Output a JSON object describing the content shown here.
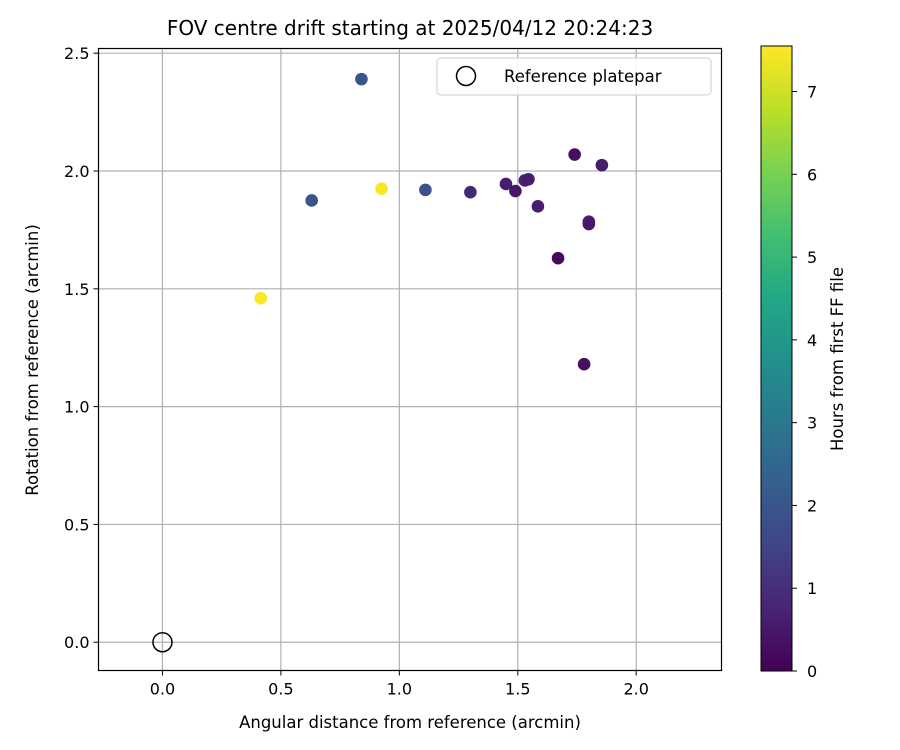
{
  "chart_data": {
    "type": "scatter",
    "title": "FOV centre drift starting at 2025/04/12 20:24:23",
    "xlabel": "Angular distance from reference (arcmin)",
    "ylabel": "Rotation from reference (arcmin)",
    "xlim": [
      -0.27,
      2.36
    ],
    "ylim": [
      -0.12,
      2.52
    ],
    "xticks": [
      0.0,
      0.5,
      1.0,
      1.5,
      2.0
    ],
    "xtick_labels": [
      "0.0",
      "0.5",
      "1.0",
      "1.5",
      "2.0"
    ],
    "yticks": [
      0.0,
      0.5,
      1.0,
      1.5,
      2.0,
      2.5
    ],
    "ytick_labels": [
      "0.0",
      "0.5",
      "1.0",
      "1.5",
      "2.0",
      "2.5"
    ],
    "grid": true,
    "colormap": "viridis",
    "colorbar": {
      "label": "Hours from first FF file",
      "range": [
        0,
        7.55
      ],
      "ticks": [
        0,
        1,
        2,
        3,
        4,
        5,
        6,
        7
      ],
      "tick_labels": [
        "0",
        "1",
        "2",
        "3",
        "4",
        "5",
        "6",
        "7"
      ]
    },
    "legend": {
      "position": "top-right",
      "entries": [
        {
          "label": "Reference platepar",
          "marker": "open-circle"
        }
      ]
    },
    "reference_point": {
      "x": 0.0,
      "y": 0.0
    },
    "points": [
      {
        "x": 0.84,
        "y": 2.39,
        "hours": 2.0
      },
      {
        "x": 0.63,
        "y": 1.875,
        "hours": 1.9
      },
      {
        "x": 1.11,
        "y": 1.92,
        "hours": 1.9
      },
      {
        "x": 0.925,
        "y": 1.925,
        "hours": 7.5
      },
      {
        "x": 0.415,
        "y": 1.46,
        "hours": 7.5
      },
      {
        "x": 1.3,
        "y": 1.91,
        "hours": 0.8
      },
      {
        "x": 1.45,
        "y": 1.945,
        "hours": 0.6
      },
      {
        "x": 1.49,
        "y": 1.915,
        "hours": 0.5
      },
      {
        "x": 1.53,
        "y": 1.96,
        "hours": 0.7
      },
      {
        "x": 1.545,
        "y": 1.965,
        "hours": 0.6
      },
      {
        "x": 1.585,
        "y": 1.85,
        "hours": 0.6
      },
      {
        "x": 1.74,
        "y": 2.07,
        "hours": 0.3
      },
      {
        "x": 1.855,
        "y": 2.025,
        "hours": 0.6
      },
      {
        "x": 1.8,
        "y": 1.785,
        "hours": 0.7
      },
      {
        "x": 1.8,
        "y": 1.775,
        "hours": 0.5
      },
      {
        "x": 1.67,
        "y": 1.63,
        "hours": 0.2
      },
      {
        "x": 1.78,
        "y": 1.18,
        "hours": 0.3
      }
    ]
  }
}
